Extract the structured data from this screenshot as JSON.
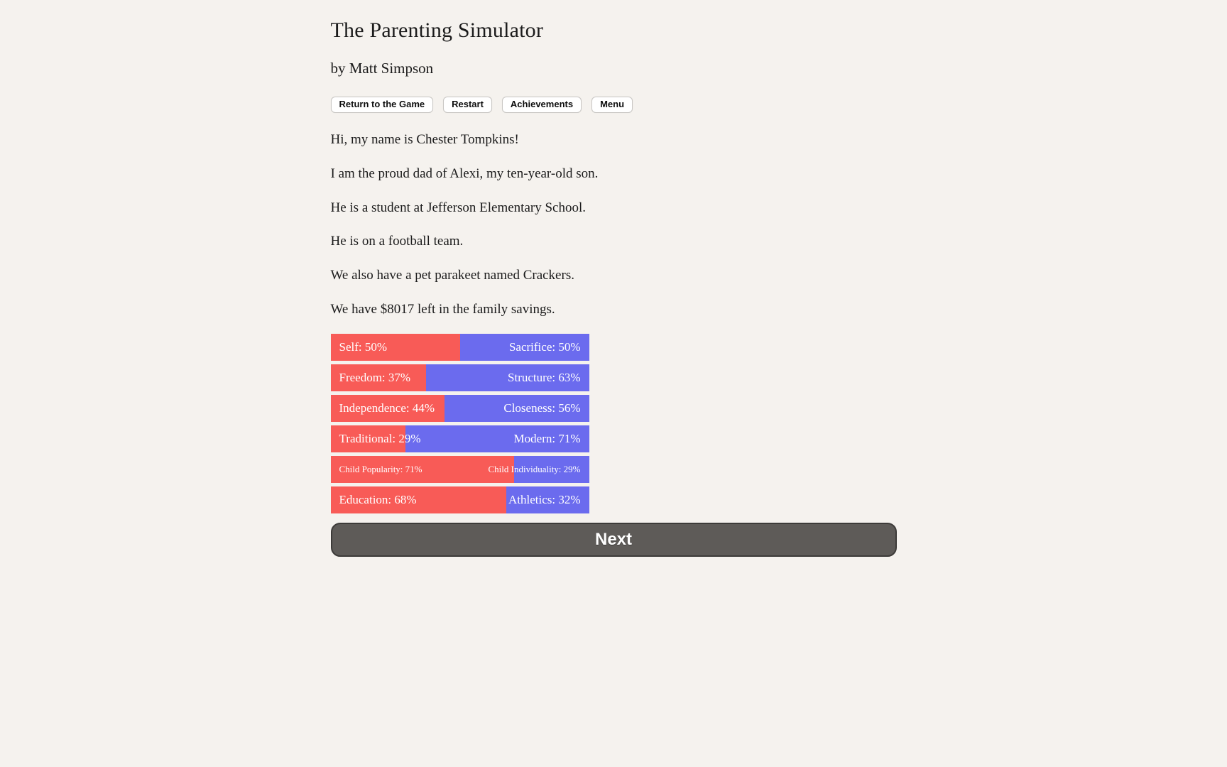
{
  "colors": {
    "background": "#f5f2ee",
    "bar_left": "#f85b57",
    "bar_right": "#6b6bee",
    "next_bg": "#5e5b58",
    "next_border": "#3d3b39"
  },
  "header": {
    "title": "The Parenting Simulator",
    "author": "by Matt Simpson"
  },
  "toolbar": {
    "buttons": [
      {
        "label": "Return to the Game"
      },
      {
        "label": "Restart"
      },
      {
        "label": "Achievements"
      },
      {
        "label": "Menu"
      }
    ]
  },
  "story": {
    "paragraphs": [
      "Hi, my name is Chester Tompkins!",
      "I am the proud dad of Alexi, my ten-year-old son.",
      "He is a student at Jefferson Elementary School.",
      "He is on a football team.",
      "We also have a pet parakeet named Crackers.",
      "We have $8017 left in the family savings."
    ]
  },
  "stats": {
    "bars": [
      {
        "left_label": "Self",
        "left_value": 50,
        "left_text": "Self: 50%",
        "right_label": "Sacrifice",
        "right_value": 50,
        "right_text": "Sacrifice: 50%",
        "left_percent": 50
      },
      {
        "left_label": "Freedom",
        "left_value": 37,
        "left_text": "Freedom: 37%",
        "right_label": "Structure",
        "right_value": 63,
        "right_text": "Structure: 63%",
        "left_percent": 37
      },
      {
        "left_label": "Independence",
        "left_value": 44,
        "left_text": "Independence: 44%",
        "right_label": "Closeness",
        "right_value": 56,
        "right_text": "Closeness: 56%",
        "left_percent": 44
      },
      {
        "left_label": "Traditional",
        "left_value": 29,
        "left_text": "Traditional: 29%",
        "right_label": "Modern",
        "right_value": 71,
        "right_text": "Modern: 71%",
        "left_percent": 29
      },
      {
        "left_label": "Child Popularity",
        "left_value": 71,
        "left_text": "Child Popularity: 71%",
        "right_label": "Child Individuality",
        "right_value": 29,
        "right_text": "Child Individuality: 29%",
        "left_percent": 71
      },
      {
        "left_label": "Education",
        "left_value": 68,
        "left_text": "Education: 68%",
        "right_label": "Athletics",
        "right_value": 32,
        "right_text": "Athletics: 32%",
        "left_percent": 68
      }
    ]
  },
  "next_button": {
    "label": "Next"
  }
}
